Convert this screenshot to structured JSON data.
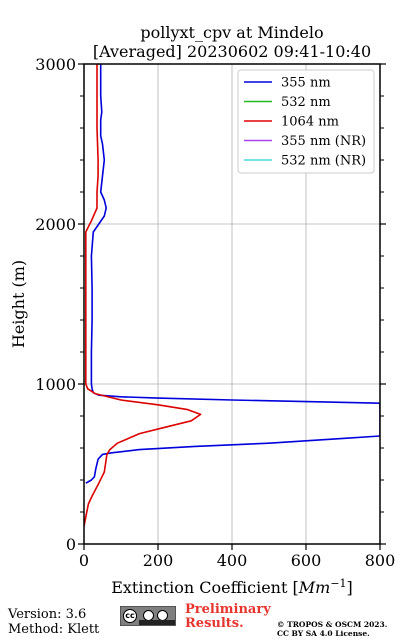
{
  "chart_data": {
    "type": "line",
    "title_line1": "pollyxt_cpv at Mindelo",
    "title_line2": "[Averaged] 20230602 09:41-10:40",
    "xlabel_text": "Extinction Coefficient [",
    "xlabel_unit": "Mm",
    "xlabel_exp": "−1",
    "xlabel_end": "]",
    "ylabel": "Height (m)",
    "xlim": [
      0,
      800
    ],
    "ylim": [
      0,
      3000
    ],
    "xticks": [
      0,
      200,
      400,
      600,
      800
    ],
    "xtick_labels": [
      "0",
      "200",
      "400",
      "600",
      "800"
    ],
    "yticks": [
      0,
      1000,
      2000,
      3000
    ],
    "ytick_labels": [
      "0",
      "1000",
      "2000",
      "3000"
    ],
    "grid": true,
    "legend_position": "top-right",
    "series": [
      {
        "name": "355 nm",
        "color": "#0000dd",
        "points": [
          [
            5,
            380
          ],
          [
            20,
            400
          ],
          [
            28,
            420
          ],
          [
            32,
            470
          ],
          [
            38,
            530
          ],
          [
            50,
            560
          ],
          [
            75,
            570
          ],
          [
            150,
            590
          ],
          [
            300,
            610
          ],
          [
            500,
            630
          ],
          [
            700,
            660
          ],
          [
            800,
            675
          ],
          [
            800,
            880
          ],
          [
            600,
            890
          ],
          [
            400,
            900
          ],
          [
            200,
            912
          ],
          [
            100,
            920
          ],
          [
            40,
            930
          ],
          [
            25,
            945
          ],
          [
            22,
            970
          ],
          [
            20,
            1000
          ],
          [
            20,
            1200
          ],
          [
            22,
            1400
          ],
          [
            22,
            1600
          ],
          [
            20,
            1800
          ],
          [
            25,
            1950
          ],
          [
            40,
            2000
          ],
          [
            55,
            2050
          ],
          [
            60,
            2100
          ],
          [
            55,
            2150
          ],
          [
            45,
            2200
          ],
          [
            50,
            2300
          ],
          [
            55,
            2400
          ],
          [
            50,
            2500
          ],
          [
            45,
            2550
          ],
          [
            45,
            2650
          ],
          [
            48,
            2700
          ],
          [
            45,
            2800
          ],
          [
            45,
            2900
          ],
          [
            45,
            3000
          ]
        ]
      },
      {
        "name": "532 nm",
        "color": "#22bb22",
        "points": []
      },
      {
        "name": "1064 nm",
        "color": "#dd0000",
        "points": [
          [
            0,
            110
          ],
          [
            5,
            170
          ],
          [
            12,
            250
          ],
          [
            22,
            300
          ],
          [
            40,
            380
          ],
          [
            55,
            450
          ],
          [
            58,
            500
          ],
          [
            62,
            560
          ],
          [
            70,
            590
          ],
          [
            90,
            630
          ],
          [
            150,
            690
          ],
          [
            220,
            730
          ],
          [
            290,
            770
          ],
          [
            315,
            810
          ],
          [
            280,
            840
          ],
          [
            200,
            870
          ],
          [
            100,
            900
          ],
          [
            30,
            940
          ],
          [
            10,
            970
          ],
          [
            5,
            1000
          ],
          [
            5,
            1200
          ],
          [
            5,
            1500
          ],
          [
            5,
            1800
          ],
          [
            5,
            1950
          ],
          [
            20,
            2020
          ],
          [
            35,
            2100
          ],
          [
            35,
            2200
          ],
          [
            38,
            2300
          ],
          [
            38,
            2400
          ],
          [
            35,
            2600
          ],
          [
            35,
            2800
          ],
          [
            35,
            3000
          ]
        ]
      },
      {
        "name": "355 nm (NR)",
        "color": "#aa44ee",
        "points": []
      },
      {
        "name": "532 nm (NR)",
        "color": "#44dddd",
        "points": []
      }
    ]
  },
  "footer": {
    "version": "Version: 3.6",
    "method": "Method: Klett",
    "cc_symbol": "cc",
    "preliminary_line1": "Preliminary",
    "preliminary_line2": "Results.",
    "copyright_line1": "© TROPOS & OSCM 2023.",
    "copyright_line2": "CC BY SA 4.0 License."
  }
}
